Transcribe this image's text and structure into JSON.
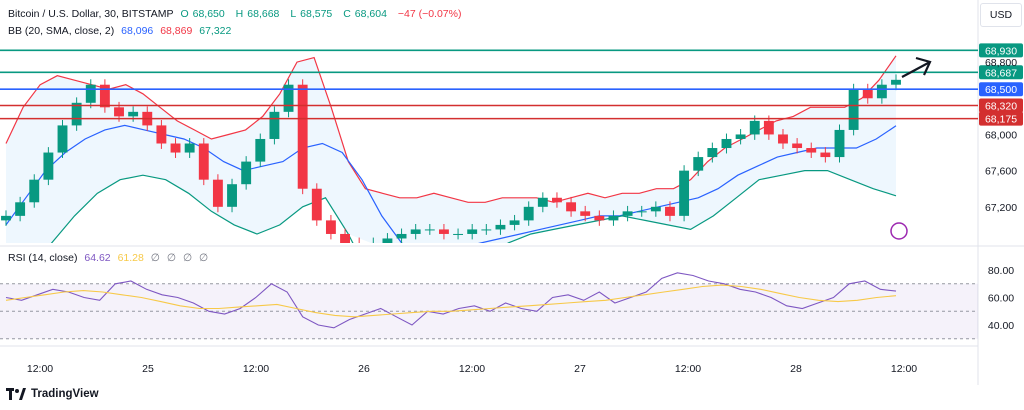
{
  "header": {
    "symbol": "Bitcoin / U.S. Dollar, 30, BITSTAMP",
    "o_label": "O",
    "o": "68,650",
    "h_label": "H",
    "h": "68,668",
    "l_label": "L",
    "l": "68,575",
    "c_label": "C",
    "c": "68,604",
    "change": "−47 (−0.07%)"
  },
  "bb": {
    "label": "BB (20, SMA, close, 2)",
    "basis": "68,096",
    "upper": "68,869",
    "lower": "67,322"
  },
  "rsi": {
    "label": "RSI (14, close)",
    "value": "64.62",
    "ma": "61.28",
    "extras": [
      "∅",
      "∅",
      "∅",
      "∅"
    ]
  },
  "currency": "USD",
  "brand": "TradingView",
  "colors": {
    "up": "#089981",
    "down": "#f23645",
    "green_level": "#089981",
    "blue_level": "#2962ff",
    "red_level": "#d32f2f",
    "rsi": "#7e57c2",
    "rsi_ma": "#f7c948"
  },
  "chart_data": {
    "type": "line",
    "price_axis_ticks": [
      67200,
      67600,
      68000,
      68800
    ],
    "rsi_axis_ticks": [
      "40.00",
      "60.00",
      "80.00"
    ],
    "time_ticks": [
      "12:00",
      "25",
      "12:00",
      "26",
      "12:00",
      "27",
      "12:00",
      "28",
      "12:00"
    ],
    "levels": [
      {
        "value": 68930,
        "label": "68,930",
        "color": "#089981"
      },
      {
        "value": 68687,
        "label": "68,687",
        "color": "#089981"
      },
      {
        "value": 68500,
        "label": "68,500",
        "color": "#2962ff"
      },
      {
        "value": 68320,
        "label": "68,320",
        "color": "#d32f2f"
      },
      {
        "value": 68175,
        "label": "68,175",
        "color": "#d32f2f"
      }
    ],
    "price_series": [
      67100,
      67250,
      67500,
      67800,
      68100,
      68350,
      68550,
      68300,
      68200,
      68250,
      68100,
      67900,
      67800,
      67900,
      67500,
      67200,
      67450,
      67700,
      67950,
      68250,
      68550,
      67400,
      67050,
      66900,
      66800,
      66700,
      66800,
      66850,
      66900,
      66950,
      66950,
      66900,
      66900,
      66950,
      66950,
      67000,
      67050,
      67200,
      67300,
      67250,
      67150,
      67100,
      67050,
      67100,
      67150,
      67150,
      67200,
      67100,
      67600,
      67750,
      67850,
      67950,
      68000,
      68150,
      68000,
      67900,
      67850,
      67800,
      67750,
      68050,
      68500,
      68400,
      68550,
      68604
    ],
    "bb_upper": [
      67900,
      68300,
      68550,
      68650,
      68600,
      68550,
      68500,
      68550,
      68450,
      68300,
      68150,
      68050,
      67950,
      68000,
      68050,
      68200,
      68450,
      68800,
      68850,
      68300,
      67700,
      67400,
      67350,
      67300,
      67300,
      67350,
      67300,
      67250,
      67250,
      67300,
      67300,
      67300,
      67250,
      67300,
      67350,
      67300,
      67350,
      67350,
      67400,
      67400,
      67500,
      67700,
      67850,
      67950,
      68050,
      68150,
      68200,
      68300,
      68300,
      68300,
      68400,
      68600,
      68869
    ],
    "bb_basis": [
      67000,
      67300,
      67600,
      67800,
      67950,
      68050,
      68100,
      68050,
      68000,
      67950,
      67850,
      67700,
      67600,
      67650,
      67700,
      67850,
      67900,
      67800,
      67500,
      67100,
      66800,
      66700,
      66700,
      66750,
      66800,
      66850,
      66900,
      66950,
      67000,
      67050,
      67100,
      67100,
      67150,
      67200,
      67250,
      67300,
      67400,
      67550,
      67650,
      67750,
      67800,
      67850,
      67850,
      67850,
      67950,
      68096
    ],
    "bb_lower": [
      66300,
      66500,
      66800,
      67100,
      67350,
      67500,
      67550,
      67500,
      67350,
      67150,
      67000,
      66900,
      67000,
      67200,
      67300,
      66900,
      66400,
      66200,
      66100,
      66200,
      66400,
      66600,
      66800,
      66900,
      66950,
      67000,
      67050,
      67100,
      67050,
      67000,
      66950,
      67100,
      67300,
      67500,
      67550,
      67600,
      67600,
      67500,
      67400,
      67322
    ],
    "rsi_series": [
      60,
      58,
      62,
      66,
      64,
      60,
      58,
      70,
      72,
      66,
      62,
      60,
      56,
      50,
      48,
      52,
      60,
      70,
      64,
      46,
      40,
      38,
      44,
      48,
      52,
      46,
      40,
      50,
      48,
      52,
      54,
      50,
      56,
      52,
      50,
      60,
      62,
      58,
      64,
      56,
      60,
      64,
      74,
      78,
      76,
      72,
      70,
      66,
      64,
      60,
      54,
      52,
      56,
      60,
      70,
      72,
      66,
      64.62
    ],
    "rsi_ma": [
      58,
      60,
      62,
      64,
      65,
      64,
      62,
      60,
      57,
      54,
      52,
      52,
      53,
      54,
      55,
      52,
      49,
      47,
      46,
      47,
      48,
      49,
      50,
      50,
      51,
      52,
      53,
      54,
      55,
      56,
      57,
      58,
      60,
      62,
      64,
      66,
      68,
      69,
      68,
      66,
      63,
      60,
      58,
      57,
      58,
      60,
      61.28
    ]
  }
}
